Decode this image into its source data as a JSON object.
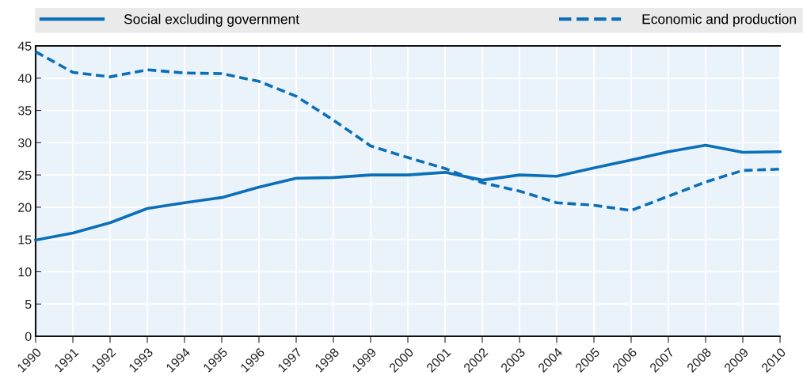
{
  "chart_data": {
    "type": "line",
    "categories": [
      "1990",
      "1991",
      "1992",
      "1993",
      "1994",
      "1995",
      "1996",
      "1997",
      "1998",
      "1999",
      "2000",
      "2001",
      "2002",
      "2003",
      "2004",
      "2005",
      "2006",
      "2007",
      "2008",
      "2009",
      "2010"
    ],
    "series": [
      {
        "name": "Social excluding government",
        "color": "#0b6fb8",
        "line_style": "solid",
        "values": [
          14.9,
          16.0,
          17.6,
          19.8,
          20.7,
          21.5,
          23.1,
          24.5,
          24.6,
          25.0,
          25.0,
          25.4,
          24.2,
          25.0,
          24.8,
          26.1,
          27.3,
          28.6,
          29.6,
          28.5,
          28.6
        ]
      },
      {
        "name": "Economic and production",
        "color": "#0b6fb8",
        "line_style": "dashed",
        "values": [
          44.1,
          40.9,
          40.2,
          41.3,
          40.8,
          40.7,
          39.5,
          37.2,
          33.5,
          29.5,
          27.7,
          26.0,
          23.8,
          22.5,
          20.7,
          20.3,
          19.5,
          21.7,
          23.9,
          25.7,
          25.9
        ]
      }
    ],
    "ylim": [
      0,
      45
    ],
    "yticks": [
      0,
      5,
      10,
      15,
      20,
      25,
      30,
      35,
      40,
      45
    ],
    "grid": true,
    "legend": "top",
    "marker": "none"
  }
}
